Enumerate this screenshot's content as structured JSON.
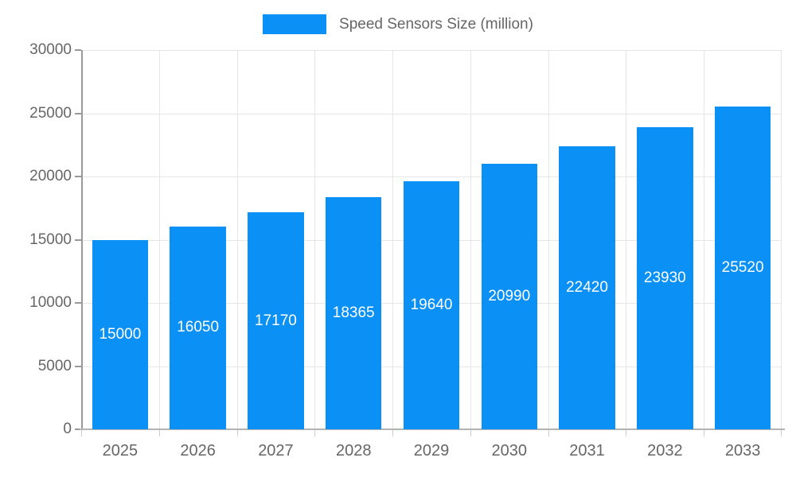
{
  "chart_data": {
    "type": "bar",
    "title": "Speed Sensors Size (million)",
    "categories": [
      "2025",
      "2026",
      "2027",
      "2028",
      "2029",
      "2030",
      "2031",
      "2032",
      "2033"
    ],
    "values": [
      15000,
      16050,
      17170,
      18365,
      19640,
      20990,
      22420,
      23930,
      25520
    ],
    "xlabel": "",
    "ylabel": "",
    "ylim": [
      0,
      30000
    ],
    "yticks": [
      0,
      5000,
      10000,
      15000,
      20000,
      25000,
      30000
    ],
    "legend_position": "top-center",
    "grid": "on",
    "bar_color": "#0b90f5",
    "value_label_color": "#ffffff",
    "tick_label_color": "#666666",
    "gridline_color": "#e6e6e6"
  }
}
